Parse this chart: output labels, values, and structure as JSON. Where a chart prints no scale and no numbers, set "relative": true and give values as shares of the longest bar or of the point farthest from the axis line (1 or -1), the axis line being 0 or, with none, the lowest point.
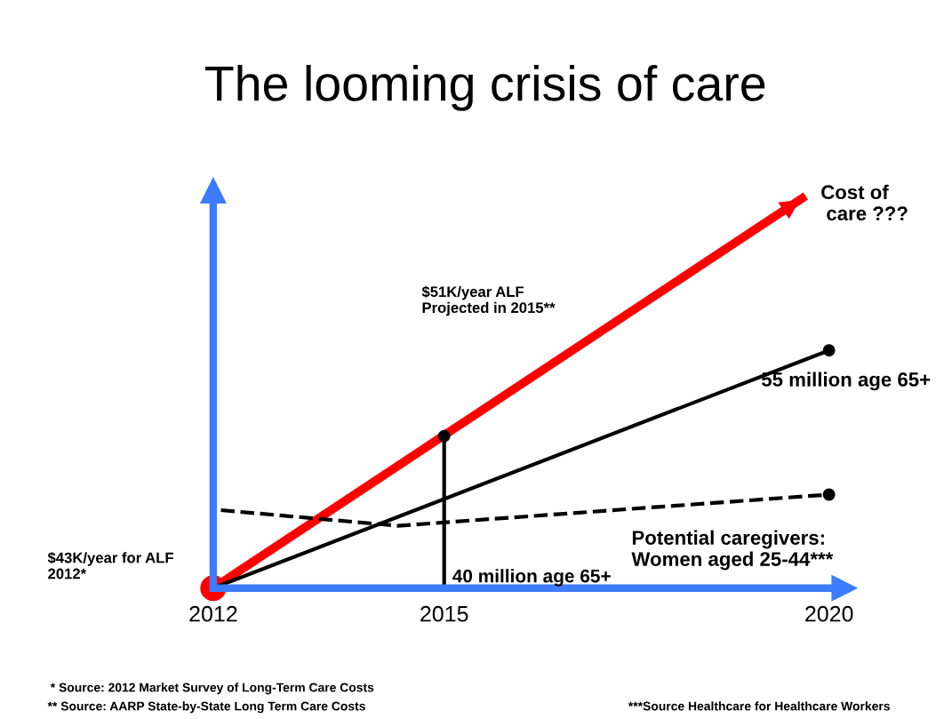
{
  "chart_data": {
    "type": "line",
    "title": "The looming crisis of care",
    "relative": true,
    "xlim": [
      2012,
      2020.2
    ],
    "xticks": [
      2012,
      2015,
      2020
    ],
    "tick_labels": "x",
    "grid": false,
    "series": [
      {
        "name": "Cost of\n care ???",
        "color": "#ff0000",
        "x": [
          2012,
          2019.65
        ],
        "values": [
          0,
          1.0
        ],
        "line_style": "solid",
        "marker": "circle"
      },
      {
        "name": "55 million age 65+",
        "color": "#000000",
        "x": [
          2012,
          2020
        ],
        "values": [
          0,
          0.61
        ],
        "line_style": "solid",
        "marker": "circle"
      },
      {
        "name": "Potential caregivers:\nWomen aged 25-44***",
        "color": "#000000",
        "x": [
          2012.1,
          2014.4,
          2020
        ],
        "values": [
          0.2,
          0.16,
          0.24
        ],
        "line_style": "dashed",
        "marker": "none"
      },
      {
        "type": "scatter",
        "color": "#000000",
        "x": [
          2020
        ],
        "values": [
          0.24
        ],
        "marker": "circle"
      },
      {
        "color": "#000000",
        "x": [
          2015,
          2015
        ],
        "values": [
          0,
          0.39
        ],
        "line_style": "solid",
        "marker": "circle"
      }
    ],
    "annotations": [
      "$51K/year ALF\nProjected in 2015**",
      "40 million age 65+",
      "$43K/year for ALF\n2012*",
      "* Source: 2012 Market Survey of Long-Term Care Costs",
      "** Source: AARP State-by-State Long Term Care Costs",
      "***Source Healthcare for Healthcare Workers"
    ]
  }
}
